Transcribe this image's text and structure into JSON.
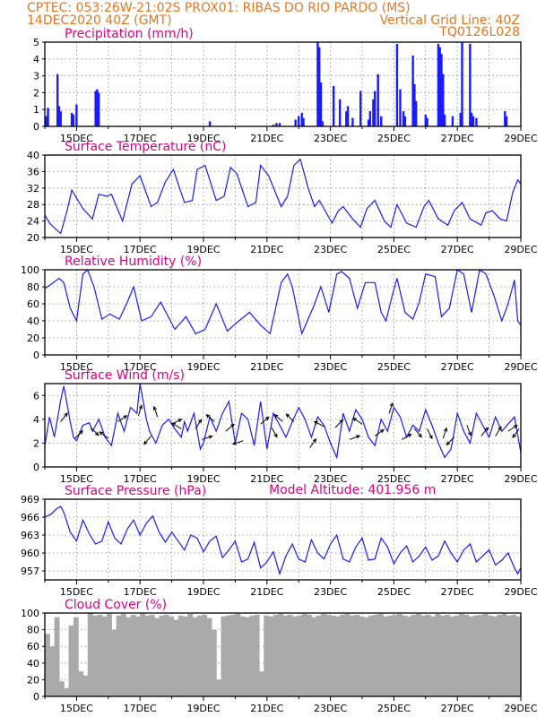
{
  "header": {
    "line1": "CPTEC:   053:26W-21:02S   PROX01: RIBAS DO RIO PARDO (MS)",
    "date": "14DEC2020 40Z (GMT)",
    "grid_note": "Vertical Grid Line: 40Z",
    "model": "TQ0126L028",
    "model_altitude": "Model Altitude: 401.956 m"
  },
  "colors": {
    "header": "#e8761e",
    "panel_title": "#e0007f",
    "series": "#1a1aff",
    "cloud": "#aaaaaa",
    "arrow": "#000000"
  },
  "chart_data": [
    {
      "type": "bar",
      "title": "Precipitation (mm/h)",
      "ylim": [
        0,
        5
      ],
      "yticks": [
        0,
        1,
        2,
        3,
        4,
        5
      ],
      "xlim": [
        0,
        15
      ],
      "xticks": [
        1,
        3,
        5,
        7,
        9,
        11,
        13,
        15
      ],
      "xticklabels": [
        "15DEC",
        "17DEC",
        "19DEC",
        "21DEC",
        "23DEC",
        "25DEC",
        "27DEC",
        "29DEC"
      ],
      "x": [
        0.05,
        0.1,
        0.4,
        0.45,
        0.5,
        0.85,
        0.9,
        1.0,
        1.6,
        1.65,
        1.7,
        5.2,
        7.2,
        7.3,
        7.4,
        7.9,
        8.0,
        8.1,
        8.15,
        8.6,
        8.65,
        8.7,
        8.75,
        9.1,
        9.3,
        9.5,
        9.55,
        9.7,
        9.95,
        10.2,
        10.25,
        10.35,
        10.4,
        10.5,
        10.6,
        11.1,
        11.2,
        11.3,
        11.35,
        11.6,
        11.65,
        11.7,
        12.0,
        12.05,
        12.4,
        12.45,
        12.5,
        12.55,
        12.6,
        12.85,
        13.1,
        13.15,
        13.4,
        13.45,
        13.5,
        13.6,
        14.5,
        14.55
      ],
      "values": [
        0.6,
        1.1,
        3.1,
        1.2,
        0.9,
        0.8,
        0.7,
        1.3,
        2.1,
        2.2,
        2.0,
        0.3,
        0.1,
        0.2,
        0.2,
        0.4,
        0.6,
        0.8,
        0.5,
        5.0,
        4.7,
        2.6,
        0.3,
        2.4,
        1.6,
        0.9,
        1.2,
        0.5,
        2.1,
        0.4,
        0.9,
        1.6,
        2.1,
        3.1,
        0.6,
        4.9,
        2.2,
        0.9,
        0.6,
        4.2,
        2.5,
        1.5,
        0.7,
        0.5,
        4.9,
        4.7,
        4.3,
        3.1,
        0.7,
        0.6,
        0.8,
        5.0,
        4.9,
        0.8,
        0.6,
        0.5,
        0.9,
        0.6
      ]
    },
    {
      "type": "line",
      "title": "Surface Temperature (nC)",
      "ylim": [
        20,
        40
      ],
      "yticks": [
        20,
        24,
        28,
        32,
        36,
        40
      ],
      "xlim": [
        0,
        15
      ],
      "xticks": [
        1,
        3,
        5,
        7,
        9,
        11,
        13,
        15
      ],
      "xticklabels": [
        "15DEC",
        "17DEC",
        "19DEC",
        "21DEC",
        "23DEC",
        "25DEC",
        "27DEC",
        "29DEC"
      ],
      "x": [
        0,
        0.15,
        0.35,
        0.5,
        0.7,
        0.85,
        1.2,
        1.5,
        1.7,
        1.95,
        2.1,
        2.45,
        2.75,
        3.0,
        3.35,
        3.55,
        3.8,
        4.05,
        4.4,
        4.65,
        4.8,
        5.05,
        5.4,
        5.65,
        5.85,
        6.05,
        6.4,
        6.65,
        6.8,
        7.05,
        7.45,
        7.65,
        7.85,
        8.05,
        8.3,
        8.5,
        8.65,
        9.05,
        9.25,
        9.4,
        9.7,
        9.95,
        10.15,
        10.4,
        10.7,
        10.9,
        11.1,
        11.4,
        11.7,
        11.95,
        12.1,
        12.4,
        12.7,
        12.9,
        13.15,
        13.4,
        13.75,
        13.9,
        14.1,
        14.35,
        14.55,
        14.75,
        14.9,
        15.0
      ],
      "values": [
        25.5,
        23.5,
        22.0,
        21.0,
        26.5,
        31.5,
        27.0,
        24.5,
        30.5,
        30.0,
        30.5,
        24.0,
        33.0,
        35.0,
        27.5,
        28.5,
        33.5,
        36.5,
        28.5,
        29.0,
        36.5,
        37.5,
        29.0,
        30.0,
        37.0,
        35.5,
        27.5,
        28.5,
        37.5,
        35.0,
        27.5,
        30.0,
        37.5,
        39.0,
        32.0,
        27.5,
        29.0,
        23.5,
        26.5,
        27.5,
        24.5,
        22.5,
        27.0,
        29.0,
        24.0,
        22.5,
        28.0,
        23.5,
        22.5,
        27.5,
        29.0,
        24.5,
        23.0,
        26.5,
        28.5,
        24.5,
        23.0,
        26.0,
        26.5,
        24.5,
        24.0,
        31.0,
        34.0,
        33.0
      ]
    },
    {
      "type": "line",
      "title": "Relative Humidity (%)",
      "ylim": [
        0,
        100
      ],
      "yticks": [
        0,
        20,
        40,
        60,
        80,
        100
      ],
      "xlim": [
        0,
        15
      ],
      "xticks": [
        1,
        3,
        5,
        7,
        9,
        11,
        13,
        15
      ],
      "xticklabels": [
        "15DEC",
        "17DEC",
        "19DEC",
        "21DEC",
        "23DEC",
        "25DEC",
        "27DEC",
        "29DEC"
      ],
      "x": [
        0,
        0.2,
        0.45,
        0.6,
        0.8,
        1.0,
        1.2,
        1.35,
        1.55,
        1.8,
        2.05,
        2.35,
        2.6,
        2.8,
        3.05,
        3.35,
        3.65,
        4.1,
        4.45,
        4.75,
        5.05,
        5.4,
        5.75,
        6.05,
        6.45,
        6.8,
        7.1,
        7.45,
        7.65,
        7.8,
        8.1,
        8.45,
        8.7,
        8.95,
        9.2,
        9.35,
        9.6,
        9.85,
        10.1,
        10.4,
        10.6,
        10.75,
        10.95,
        11.1,
        11.35,
        11.6,
        11.8,
        12.0,
        12.3,
        12.5,
        12.75,
        13.0,
        13.2,
        13.45,
        13.7,
        13.9,
        14.15,
        14.4,
        14.6,
        14.8,
        14.9,
        15.0
      ],
      "values": [
        78,
        83,
        90,
        85,
        55,
        40,
        95,
        100,
        80,
        42,
        48,
        42,
        62,
        80,
        40,
        45,
        62,
        30,
        45,
        25,
        30,
        60,
        28,
        38,
        50,
        35,
        25,
        85,
        95,
        80,
        25,
        55,
        80,
        50,
        95,
        98,
        90,
        55,
        85,
        85,
        50,
        40,
        70,
        90,
        50,
        42,
        62,
        95,
        92,
        45,
        55,
        100,
        95,
        50,
        100,
        95,
        70,
        40,
        60,
        88,
        40,
        35
      ]
    },
    {
      "type": "line",
      "title": "Surface Wind (m/s)",
      "ylim": [
        0,
        7
      ],
      "yticks": [
        0,
        2,
        4,
        6
      ],
      "xlim": [
        0,
        15
      ],
      "xticks": [
        1,
        3,
        5,
        7,
        9,
        11,
        13,
        15
      ],
      "xticklabels": [
        "15DEC",
        "17DEC",
        "19DEC",
        "21DEC",
        "23DEC",
        "25DEC",
        "27DEC",
        "29DEC"
      ],
      "x": [
        0,
        0.15,
        0.3,
        0.5,
        0.6,
        0.8,
        0.9,
        1.0,
        1.2,
        1.4,
        1.5,
        1.7,
        1.9,
        2.1,
        2.3,
        2.5,
        2.7,
        2.9,
        3.0,
        3.2,
        3.3,
        3.5,
        3.7,
        3.9,
        4.1,
        4.3,
        4.4,
        4.5,
        4.7,
        4.9,
        5.0,
        5.2,
        5.4,
        5.6,
        5.8,
        6.0,
        6.2,
        6.4,
        6.6,
        6.8,
        7.0,
        7.2,
        7.4,
        7.6,
        7.8,
        8.0,
        8.2,
        8.4,
        8.6,
        8.8,
        9.0,
        9.2,
        9.4,
        9.6,
        9.8,
        10.0,
        10.2,
        10.4,
        10.6,
        10.8,
        11.0,
        11.2,
        11.4,
        11.6,
        11.8,
        12.0,
        12.2,
        12.4,
        12.6,
        12.8,
        13.0,
        13.2,
        13.4,
        13.6,
        13.8,
        14.0,
        14.2,
        14.4,
        14.6,
        14.8,
        15.0
      ],
      "values": [
        1.8,
        4.2,
        2.5,
        5.6,
        6.8,
        3.8,
        2.5,
        2.2,
        3.5,
        3.7,
        3.0,
        4.0,
        2.5,
        1.8,
        4.5,
        3.0,
        5.0,
        4.5,
        7.0,
        4.0,
        3.0,
        2.0,
        3.5,
        4.0,
        3.2,
        2.5,
        3.8,
        3.0,
        4.5,
        1.5,
        2.0,
        4.2,
        3.0,
        4.5,
        5.5,
        2.0,
        4.5,
        4.0,
        1.8,
        5.5,
        1.5,
        4.5,
        3.5,
        2.5,
        3.8,
        5.0,
        4.0,
        2.5,
        4.2,
        3.5,
        2.0,
        0.8,
        4.5,
        3.0,
        4.8,
        4.0,
        2.5,
        1.8,
        4.0,
        3.0,
        5.0,
        4.2,
        2.5,
        3.5,
        3.0,
        4.8,
        3.5,
        2.0,
        0.8,
        1.5,
        4.5,
        3.0,
        2.0,
        4.5,
        3.5,
        2.5,
        4.2,
        3.0,
        3.6,
        4.2,
        1.2
      ],
      "vectors": {
        "x": [
          0.5,
          0.95,
          1.45,
          2.0,
          2.3,
          2.95,
          3.35,
          3.55,
          4.0,
          4.3,
          4.75,
          4.95,
          5.35,
          5.7,
          6.25,
          6.8,
          7.15,
          7.5,
          7.85,
          8.35,
          8.8,
          9.15,
          9.6,
          10.0,
          10.4,
          10.85,
          11.25,
          11.65,
          12.05,
          12.55,
          12.9,
          13.3,
          13.75,
          14.2,
          14.6,
          14.95
        ],
        "y": [
          3.8,
          2.4,
          3.3,
          2.4,
          3.8,
          4.3,
          2.6,
          4.2,
          3.6,
          3.2,
          3.2,
          2.3,
          3.8,
          3.0,
          2.2,
          3.6,
          3.3,
          3.8,
          3.8,
          1.6,
          3.4,
          3.3,
          2.3,
          3.6,
          2.6,
          4.5,
          2.3,
          3.2,
          3.2,
          2.4,
          2.5,
          3.5,
          2.6,
          2.6,
          3.0,
          3.2
        ],
        "u": [
          0.7,
          0.6,
          0.8,
          -0.8,
          0.9,
          0.3,
          -0.6,
          -0.3,
          0.8,
          -0.8,
          0.5,
          0.9,
          -0.7,
          0.6,
          -0.9,
          0.7,
          0.5,
          -0.7,
          -0.5,
          0.7,
          -0.8,
          0.6,
          0.8,
          -0.9,
          0.7,
          0.3,
          0.7,
          0.6,
          0.4,
          0.3,
          -0.6,
          0.3,
          0.5,
          0.5,
          0.9,
          -0.6
        ],
        "v": [
          0.9,
          0.6,
          -0.8,
          0.6,
          0.6,
          1.0,
          -0.7,
          0.9,
          0.4,
          0.5,
          0.8,
          0.3,
          0.6,
          0.5,
          -0.3,
          0.6,
          -0.9,
          0.6,
          0.5,
          1.0,
          0.4,
          0.6,
          0.3,
          0.6,
          0.5,
          0.9,
          0.4,
          -0.7,
          -0.8,
          0.9,
          -0.6,
          -0.8,
          0.6,
          0.8,
          0.6,
          -0.8
        ]
      }
    },
    {
      "type": "line",
      "title": "Surface Pressure (hPa)",
      "ylim": [
        955.5,
        969
      ],
      "yticks": [
        957,
        960,
        963,
        966,
        969
      ],
      "xlim": [
        0,
        15
      ],
      "xticks": [
        1,
        3,
        5,
        7,
        9,
        11,
        13,
        15
      ],
      "xticklabels": [
        "15DEC",
        "17DEC",
        "19DEC",
        "21DEC",
        "23DEC",
        "25DEC",
        "27DEC",
        "29DEC"
      ],
      "x": [
        0,
        0.2,
        0.35,
        0.5,
        0.6,
        0.8,
        1.0,
        1.2,
        1.4,
        1.6,
        1.8,
        2.0,
        2.2,
        2.4,
        2.6,
        2.8,
        3.0,
        3.2,
        3.4,
        3.6,
        3.8,
        4.0,
        4.2,
        4.4,
        4.6,
        4.8,
        5.0,
        5.2,
        5.4,
        5.6,
        5.8,
        6.0,
        6.2,
        6.4,
        6.6,
        6.8,
        7.0,
        7.2,
        7.4,
        7.6,
        7.8,
        8.0,
        8.2,
        8.4,
        8.6,
        8.8,
        9.0,
        9.2,
        9.4,
        9.6,
        9.8,
        10.0,
        10.2,
        10.4,
        10.6,
        10.8,
        11.0,
        11.2,
        11.4,
        11.6,
        11.8,
        12.0,
        12.2,
        12.4,
        12.6,
        12.8,
        13.0,
        13.2,
        13.4,
        13.6,
        13.8,
        14.0,
        14.2,
        14.4,
        14.6,
        14.8,
        14.9,
        15.0
      ],
      "values": [
        966.0,
        966.5,
        967.3,
        967.8,
        966.8,
        963.5,
        962.0,
        965.5,
        963.2,
        961.5,
        962.0,
        965.2,
        962.5,
        961.5,
        964.0,
        965.5,
        963.0,
        965.0,
        966.2,
        963.5,
        961.8,
        963.5,
        962.0,
        960.5,
        963.0,
        962.5,
        960.2,
        962.0,
        962.8,
        959.2,
        960.5,
        962.0,
        958.5,
        959.0,
        961.8,
        957.5,
        958.5,
        960.2,
        956.5,
        959.5,
        961.5,
        959.0,
        958.5,
        962.2,
        960.0,
        959.0,
        961.5,
        963.0,
        959.0,
        958.5,
        961.0,
        962.5,
        958.8,
        959.0,
        962.5,
        961.0,
        958.2,
        960.0,
        961.2,
        958.5,
        959.5,
        961.0,
        958.8,
        959.5,
        962.0,
        960.0,
        958.5,
        960.5,
        961.5,
        958.5,
        959.5,
        960.5,
        958.0,
        958.8,
        960.0,
        957.5,
        956.5,
        957.5
      ]
    },
    {
      "type": "bar",
      "title": "Cloud Cover (%)",
      "ylim": [
        0,
        100
      ],
      "yticks": [
        0,
        20,
        40,
        60,
        80,
        100
      ],
      "xlim": [
        0,
        15
      ],
      "xticks": [
        1,
        3,
        5,
        7,
        9,
        11,
        13,
        15
      ],
      "xticklabels": [
        "15DEC",
        "17DEC",
        "19DEC",
        "21DEC",
        "23DEC",
        "25DEC",
        "27DEC",
        "29DEC"
      ],
      "x": [
        0,
        0.15,
        0.3,
        0.45,
        0.6,
        0.75,
        0.9,
        1.05,
        1.2,
        1.35,
        1.5,
        1.65,
        1.8,
        1.95,
        2.1,
        2.25,
        2.4,
        2.55,
        2.7,
        2.85,
        3.0,
        3.15,
        3.3,
        3.45,
        3.6,
        3.75,
        3.9,
        4.05,
        4.2,
        4.35,
        4.5,
        4.65,
        4.8,
        4.95,
        5.1,
        5.25,
        5.4,
        5.55,
        5.7,
        5.85,
        6.0,
        6.15,
        6.3,
        6.45,
        6.6,
        6.75,
        6.9,
        7.05,
        7.2,
        7.35,
        7.5,
        7.65,
        7.8,
        7.95,
        8.1,
        8.25,
        8.4,
        8.55,
        8.7,
        8.85,
        9.0,
        9.15,
        9.3,
        9.45,
        9.6,
        9.75,
        9.9,
        10.05,
        10.2,
        10.35,
        10.5,
        10.65,
        10.8,
        10.95,
        11.1,
        11.25,
        11.4,
        11.55,
        11.7,
        11.85,
        12.0,
        12.15,
        12.3,
        12.45,
        12.6,
        12.75,
        12.9,
        13.05,
        13.2,
        13.35,
        13.5,
        13.65,
        13.8,
        13.95,
        14.1,
        14.25,
        14.4,
        14.55,
        14.7,
        14.85
      ],
      "values": [
        75,
        60,
        95,
        18,
        10,
        85,
        95,
        30,
        25,
        100,
        97,
        98,
        96,
        99,
        80,
        97,
        99,
        95,
        98,
        96,
        99,
        97,
        98,
        94,
        97,
        98,
        96,
        92,
        97,
        96,
        99,
        95,
        97,
        98,
        94,
        80,
        20,
        96,
        97,
        98,
        99,
        96,
        95,
        97,
        98,
        30,
        97,
        96,
        98,
        99,
        97,
        98,
        96,
        97,
        99,
        98,
        95,
        97,
        99,
        98,
        97,
        96,
        98,
        99,
        97,
        98,
        96,
        95,
        97,
        98,
        99,
        96,
        97,
        98,
        99,
        97,
        96,
        98,
        99,
        97,
        98,
        96,
        99,
        97,
        98,
        96,
        97,
        99,
        98,
        96,
        97,
        98,
        99,
        97,
        96,
        98,
        99,
        97,
        98,
        96
      ]
    }
  ]
}
